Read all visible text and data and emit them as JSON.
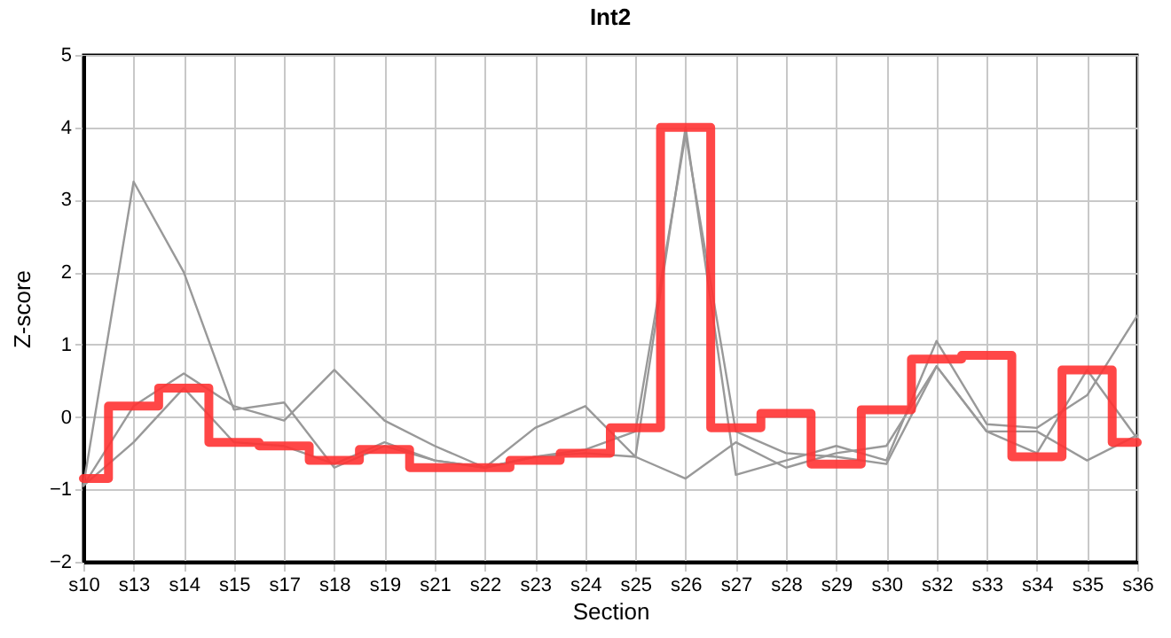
{
  "chart_data": {
    "type": "line",
    "title": "Int2",
    "xlabel": "Section",
    "ylabel": "Z-score",
    "categories": [
      "s10",
      "s13",
      "s14",
      "s15",
      "s17",
      "s18",
      "s19",
      "s21",
      "s22",
      "s23",
      "s24",
      "s25",
      "s26",
      "s27",
      "s28",
      "s29",
      "s30",
      "s32",
      "s33",
      "s34",
      "s35",
      "s36"
    ],
    "ylim": [
      -2,
      5
    ],
    "yticks": [
      -2,
      -1,
      0,
      1,
      2,
      3,
      4,
      5
    ],
    "grid": true,
    "marker": "none",
    "series": [
      {
        "type": "line",
        "color": "#999999",
        "values": [
          -0.95,
          3.25,
          2.0,
          0.1,
          0.2,
          -0.7,
          -0.4,
          -0.6,
          -0.7,
          -0.55,
          -0.5,
          -0.55,
          4.0,
          -0.8,
          -0.6,
          -0.4,
          -0.6,
          1.05,
          -0.1,
          -0.15,
          0.3,
          1.4
        ]
      },
      {
        "type": "line",
        "color": "#999999",
        "values": [
          -0.95,
          0.15,
          0.6,
          0.15,
          -0.05,
          0.65,
          -0.05,
          -0.4,
          -0.7,
          -0.15,
          0.15,
          -0.55,
          -0.85,
          -0.35,
          -0.7,
          -0.5,
          -0.4,
          0.7,
          -0.2,
          -0.5,
          0.65,
          -0.3
        ]
      },
      {
        "type": "line",
        "color": "#999999",
        "values": [
          -0.95,
          -0.35,
          0.4,
          -0.35,
          -0.4,
          -0.65,
          -0.35,
          -0.6,
          -0.7,
          -0.55,
          -0.45,
          -0.2,
          3.9,
          -0.2,
          -0.5,
          -0.55,
          -0.65,
          0.7,
          -0.2,
          -0.2,
          -0.6,
          -0.25
        ]
      },
      {
        "type": "step",
        "color": "#ff3333",
        "values": [
          -0.85,
          0.15,
          0.4,
          -0.35,
          -0.4,
          -0.6,
          -0.45,
          -0.7,
          -0.7,
          -0.6,
          -0.5,
          -0.15,
          4.0,
          -0.15,
          0.05,
          -0.65,
          0.1,
          0.8,
          0.85,
          -0.55,
          0.65,
          -0.35
        ]
      }
    ]
  }
}
